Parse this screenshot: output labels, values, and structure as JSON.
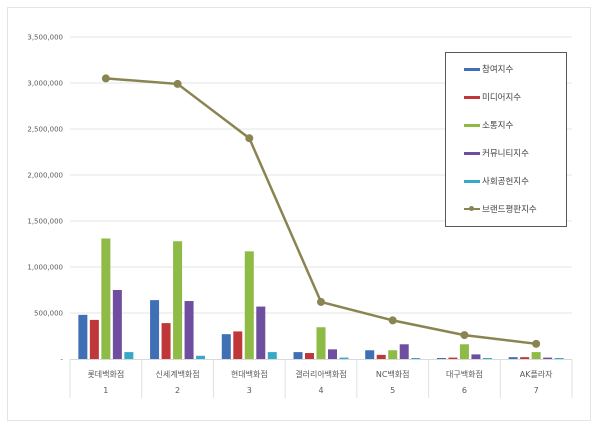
{
  "chart_data": {
    "type": "bar+line",
    "title": "",
    "xlabel": "",
    "ylabel": "",
    "ylim": [
      0,
      3500000
    ],
    "yticks": [
      {
        "value": 0,
        "label": "-"
      },
      {
        "value": 500000,
        "label": "500,000"
      },
      {
        "value": 1000000,
        "label": "1,000,000"
      },
      {
        "value": 1500000,
        "label": "1,500,000"
      },
      {
        "value": 2000000,
        "label": "2,000,000"
      },
      {
        "value": 2500000,
        "label": "2,500,000"
      },
      {
        "value": 3000000,
        "label": "3,000,000"
      },
      {
        "value": 3500000,
        "label": "3,500,000"
      }
    ],
    "grid": true,
    "legend_position": "right-inside",
    "categories": [
      "롯데백화점",
      "신세계백화점",
      "현대백화점",
      "갤러리아백화점",
      "NC백화점",
      "대구백화점",
      "AK플라자"
    ],
    "category_numbers": [
      "1",
      "2",
      "3",
      "4",
      "5",
      "6",
      "7"
    ],
    "series": [
      {
        "name": "참여지수",
        "type": "bar",
        "color": "#3f6fb5",
        "values": [
          480000,
          640000,
          270000,
          75000,
          95000,
          10000,
          20000
        ]
      },
      {
        "name": "미디어지수",
        "type": "bar",
        "color": "#c0373a",
        "values": [
          425000,
          390000,
          300000,
          65000,
          45000,
          15000,
          20000
        ]
      },
      {
        "name": "소통지수",
        "type": "bar",
        "color": "#8dbb45",
        "values": [
          1310000,
          1280000,
          1170000,
          345000,
          95000,
          160000,
          75000
        ]
      },
      {
        "name": "커뮤니티지수",
        "type": "bar",
        "color": "#6f4ea0",
        "values": [
          750000,
          630000,
          570000,
          105000,
          160000,
          50000,
          15000
        ]
      },
      {
        "name": "사회공헌지수",
        "type": "bar",
        "color": "#35a9c6",
        "values": [
          75000,
          35000,
          75000,
          15000,
          10000,
          2000,
          2000
        ]
      },
      {
        "name": "브랜드평판지수",
        "type": "line",
        "color": "#8a8452",
        "values": [
          3050000,
          2990000,
          2400000,
          620000,
          420000,
          260000,
          165000
        ]
      }
    ]
  }
}
